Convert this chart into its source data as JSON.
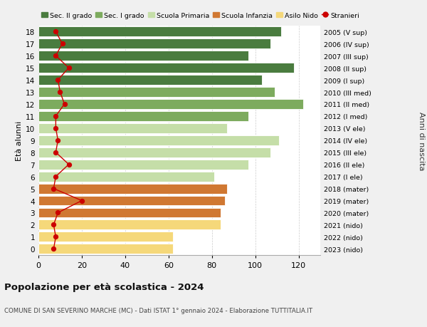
{
  "ages": [
    18,
    17,
    16,
    15,
    14,
    13,
    12,
    11,
    10,
    9,
    8,
    7,
    6,
    5,
    4,
    3,
    2,
    1,
    0
  ],
  "years": [
    "2005 (V sup)",
    "2006 (IV sup)",
    "2007 (III sup)",
    "2008 (II sup)",
    "2009 (I sup)",
    "2010 (III med)",
    "2011 (II med)",
    "2012 (I med)",
    "2013 (V ele)",
    "2014 (IV ele)",
    "2015 (III ele)",
    "2016 (II ele)",
    "2017 (I ele)",
    "2018 (mater)",
    "2019 (mater)",
    "2020 (mater)",
    "2021 (nido)",
    "2022 (nido)",
    "2023 (nido)"
  ],
  "values": [
    112,
    107,
    97,
    118,
    103,
    109,
    122,
    97,
    87,
    111,
    107,
    97,
    81,
    87,
    86,
    84,
    84,
    62,
    62
  ],
  "stranieri": [
    8,
    11,
    8,
    14,
    9,
    10,
    12,
    8,
    8,
    9,
    8,
    14,
    8,
    7,
    20,
    9,
    7,
    8,
    7
  ],
  "sec2_ages": [
    18,
    17,
    16,
    15,
    14
  ],
  "sec1_ages": [
    13,
    12,
    11
  ],
  "primaria_ages": [
    10,
    9,
    8,
    7,
    6
  ],
  "infanzia_ages": [
    5,
    4,
    3
  ],
  "nido_ages": [
    2,
    1,
    0
  ],
  "color_sec2": "#4a7c3f",
  "color_sec1": "#7dab5e",
  "color_primaria": "#c5dea8",
  "color_infanzia": "#d07832",
  "color_nido": "#f5d87a",
  "color_stranieri": "#cc0000",
  "legend_labels": [
    "Sec. II grado",
    "Sec. I grado",
    "Scuola Primaria",
    "Scuola Infanzia",
    "Asilo Nido",
    "Stranieri"
  ],
  "ylabel_left": "Età alunni",
  "ylabel_right": "Anni di nascita",
  "title": "Popolazione per età scolastica - 2024",
  "subtitle": "COMUNE DI SAN SEVERINO MARCHE (MC) - Dati ISTAT 1° gennaio 2024 - Elaborazione TUTTITALIA.IT",
  "xticks": [
    0,
    20,
    40,
    60,
    80,
    100,
    120
  ],
  "bg_color": "#f0f0f0",
  "plot_bg": "#ffffff"
}
